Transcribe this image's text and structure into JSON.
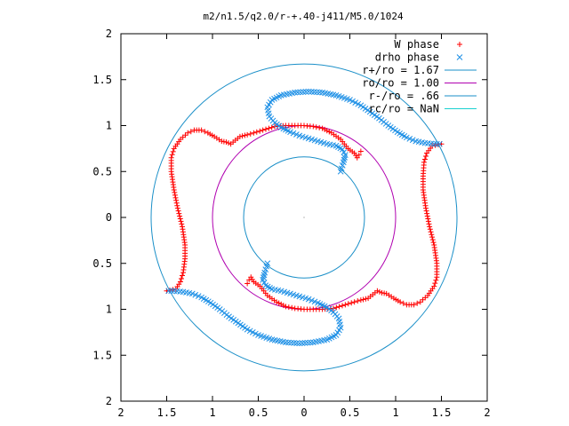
{
  "chart_data": {
    "type": "scatter",
    "title": "m2/n1.5/q2.0/r-+.40-j411/M5.0/1024",
    "xlabel": "",
    "ylabel": "",
    "xlim": [
      -2,
      2
    ],
    "ylim": [
      -2,
      2
    ],
    "x_tick_labels": [
      "2",
      "1.5",
      "1",
      "0.5",
      "0",
      "0.5",
      "1",
      "1.5",
      "2"
    ],
    "y_tick_labels": [
      "2",
      "1.5",
      "1",
      "0.5",
      "0",
      "0.5",
      "1",
      "1.5",
      "2"
    ],
    "x_ticks": [
      -2,
      -1.5,
      -1,
      -0.5,
      0,
      0.5,
      1,
      1.5,
      2
    ],
    "y_ticks": [
      2,
      1.5,
      1,
      0.5,
      0,
      -0.5,
      -1,
      -1.5,
      -2
    ],
    "grid": false,
    "legend_position": "top-right",
    "colors": {
      "w_phase": "#ff0000",
      "drho_phase": "#1e90e6",
      "r_plus": "#1a8fc8",
      "r_o": "#b000b0",
      "r_minus": "#1a8fc8",
      "r_c": "#19d0d0",
      "axes": "#000000"
    },
    "circles": [
      {
        "name": "r+/ro = 1.67",
        "radius": 1.67,
        "color": "#1a8fc8"
      },
      {
        "name": "ro/ro = 1.00",
        "radius": 1.0,
        "color": "#b000b0"
      },
      {
        "name": "r-/ro = .66",
        "radius": 0.66,
        "color": "#1a8fc8"
      },
      {
        "name": "rc/ro = NaN",
        "radius": null,
        "color": "#19d0d0"
      }
    ],
    "series": [
      {
        "name": "W phase",
        "marker": "plus",
        "color": "#ff0000",
        "x": [
          -1.5,
          -1.4,
          -1.35,
          -1.32,
          -1.3,
          -1.3,
          -1.33,
          -1.38,
          -1.42,
          -1.45,
          -1.45,
          -1.42,
          -1.35,
          -1.27,
          -1.2,
          -1.12,
          -1.05,
          -0.98,
          -0.9,
          -0.85,
          -0.8,
          -0.75,
          -0.7,
          -0.62,
          -0.55,
          -0.45,
          -0.32,
          -0.2,
          -0.1,
          0.0,
          0.1,
          0.2,
          0.3,
          0.4,
          0.48,
          0.55,
          0.58,
          0.6,
          0.62,
          1.5,
          1.4,
          1.34,
          1.31,
          1.3,
          1.3,
          1.33,
          1.37,
          1.42,
          1.45,
          1.45,
          1.42,
          1.35,
          1.27,
          1.2,
          1.12,
          1.05,
          0.98,
          0.9,
          0.85,
          0.8,
          0.75,
          0.7,
          0.62,
          0.55,
          0.45,
          0.32,
          0.2,
          0.1,
          0.0,
          -0.1,
          -0.2,
          -0.3,
          -0.4,
          -0.48,
          -0.55,
          -0.58,
          -0.6,
          -0.62
        ],
        "y": [
          -0.8,
          -0.78,
          -0.7,
          -0.6,
          -0.45,
          -0.3,
          -0.1,
          0.1,
          0.3,
          0.5,
          0.65,
          0.75,
          0.85,
          0.92,
          0.95,
          0.95,
          0.92,
          0.88,
          0.83,
          0.82,
          0.8,
          0.84,
          0.88,
          0.9,
          0.92,
          0.95,
          0.99,
          1.0,
          1.0,
          1.0,
          0.99,
          0.97,
          0.92,
          0.85,
          0.75,
          0.7,
          0.65,
          0.68,
          0.72,
          0.8,
          0.78,
          0.7,
          0.6,
          0.45,
          0.3,
          0.1,
          -0.1,
          -0.3,
          -0.5,
          -0.65,
          -0.75,
          -0.85,
          -0.92,
          -0.95,
          -0.95,
          -0.92,
          -0.88,
          -0.83,
          -0.82,
          -0.8,
          -0.84,
          -0.88,
          -0.9,
          -0.92,
          -0.95,
          -0.99,
          -1.0,
          -1.0,
          -1.0,
          -0.99,
          -0.97,
          -0.92,
          -0.85,
          -0.75,
          -0.7,
          -0.65,
          -0.68,
          -0.72
        ]
      },
      {
        "name": "drho phase",
        "marker": "cross",
        "color": "#1e90e6",
        "x": [
          0.4,
          0.43,
          0.45,
          0.42,
          0.35,
          0.25,
          0.15,
          0.05,
          -0.05,
          -0.15,
          -0.25,
          -0.32,
          -0.38,
          -0.4,
          -0.35,
          -0.25,
          -0.1,
          0.05,
          0.2,
          0.35,
          0.5,
          0.62,
          0.72,
          0.82,
          0.92,
          1.02,
          1.12,
          1.22,
          1.32,
          1.42,
          1.48,
          -0.4,
          -0.43,
          -0.45,
          -0.42,
          -0.35,
          -0.25,
          -0.15,
          -0.05,
          0.05,
          0.15,
          0.25,
          0.32,
          0.38,
          0.4,
          0.35,
          0.25,
          0.1,
          -0.05,
          -0.2,
          -0.35,
          -0.5,
          -0.62,
          -0.72,
          -0.82,
          -0.92,
          -1.02,
          -1.12,
          -1.22,
          -1.32,
          -1.42,
          -1.48
        ],
        "y": [
          0.5,
          0.6,
          0.68,
          0.74,
          0.78,
          0.8,
          0.83,
          0.86,
          0.89,
          0.93,
          0.98,
          1.03,
          1.1,
          1.2,
          1.28,
          1.33,
          1.36,
          1.37,
          1.36,
          1.33,
          1.28,
          1.22,
          1.15,
          1.08,
          1.0,
          0.93,
          0.87,
          0.83,
          0.81,
          0.8,
          0.8,
          -0.5,
          -0.6,
          -0.68,
          -0.74,
          -0.78,
          -0.8,
          -0.83,
          -0.86,
          -0.89,
          -0.93,
          -0.98,
          -1.03,
          -1.1,
          -1.2,
          -1.28,
          -1.33,
          -1.36,
          -1.37,
          -1.36,
          -1.33,
          -1.28,
          -1.22,
          -1.15,
          -1.08,
          -1.0,
          -0.93,
          -0.87,
          -0.83,
          -0.81,
          -0.8,
          -0.8
        ]
      }
    ]
  }
}
